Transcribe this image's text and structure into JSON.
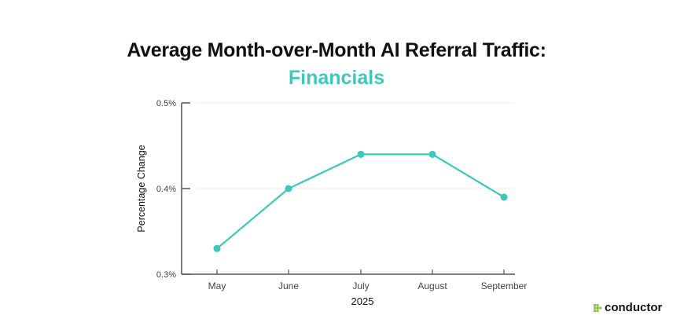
{
  "chart_data": {
    "type": "line",
    "title": "Average Month-over-Month AI Referral Traffic:",
    "subtitle": "Financials",
    "xlabel": "2025",
    "ylabel": "Percentage Change",
    "categories": [
      "May",
      "June",
      "July",
      "August",
      "September"
    ],
    "series": [
      {
        "name": "Financials",
        "values": [
          0.33,
          0.4,
          0.44,
          0.44,
          0.39
        ]
      }
    ],
    "ylim": [
      0.3,
      0.5
    ],
    "yticks": [
      0.3,
      0.4,
      0.5
    ],
    "ytick_labels": [
      "0.3%",
      "0.4%",
      "0.5%"
    ],
    "grid": true,
    "legend": "none"
  },
  "colors": {
    "accent": "#3cc9bb",
    "axis": "#555555",
    "grid": "#eeeeee"
  },
  "brand": {
    "name": "conductor",
    "icon": "conductor-grid-icon"
  }
}
